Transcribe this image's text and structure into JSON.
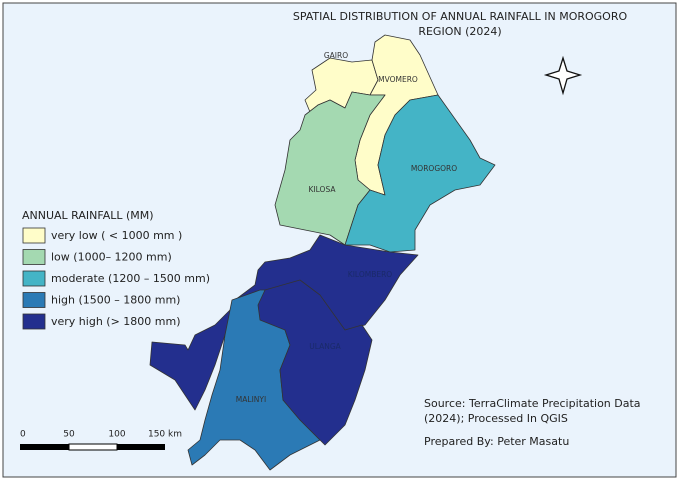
{
  "title": [
    "SPATIAL DISTRIBUTION OF ANNUAL RAINFALL IN MOROGORO",
    "REGION (2024)"
  ],
  "districts": [
    "GAIRO",
    "MVOMERO",
    "KILOSA",
    "MOROGORO",
    "KILOMBERO",
    "ULANGA",
    "MALINYI"
  ],
  "legend": {
    "title": "ANNUAL RAINFALL (MM)",
    "items": [
      {
        "label": "very low ( < 1000 mm )",
        "color": "#fffdc9"
      },
      {
        "label": "low (1000– 1200 mm)",
        "color": "#a4d9b1"
      },
      {
        "label": "moderate (1200 – 1500 mm)",
        "color": "#44b4c6"
      },
      {
        "label": "high (1500 – 1800 mm)",
        "color": "#2b7ab5"
      },
      {
        "label": "very high (> 1800 mm)",
        "color": "#232f8e"
      }
    ]
  },
  "scale_bar": [
    "0",
    "50",
    "100",
    "150 km"
  ],
  "source": [
    "Source: TerraClimate Precipitation Data",
    "(2024); Processed In QGIS"
  ],
  "prepared_by": "Prepared By: Peter Masatu"
}
